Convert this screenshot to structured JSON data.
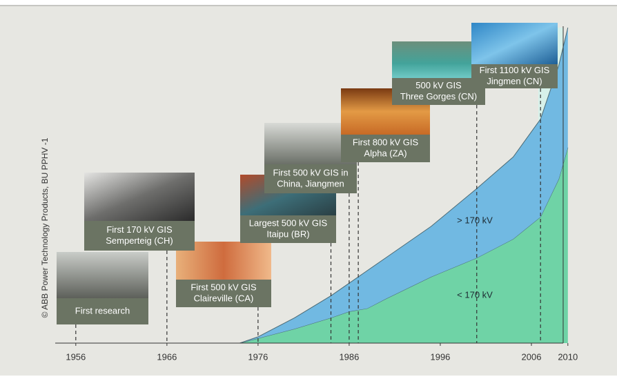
{
  "chart_data": {
    "type": "stacked-area",
    "credit": "© ABB Power Technology Products, BU PPHV -1",
    "x": [
      1969,
      1974,
      1976,
      1980,
      1984,
      1986,
      1988,
      1990,
      1995,
      2000,
      2004,
      2007,
      2009,
      2010
    ],
    "series": [
      {
        "name": "< 170 kV",
        "color": "#6fd3a6",
        "values": [
          0,
          0,
          1.5,
          4.5,
          8,
          10,
          11,
          14,
          21,
          27,
          33,
          40,
          52,
          62
        ]
      },
      {
        "name": "> 170 kV",
        "color": "#71b9e2",
        "values": [
          0,
          0,
          0.5,
          3.5,
          7,
          9,
          12,
          13,
          16,
          22,
          26,
          31,
          36,
          38
        ]
      }
    ],
    "xlim": [
      1952,
      2011
    ],
    "xticks": [
      1956,
      1966,
      1976,
      1986,
      1996,
      2006,
      2010
    ],
    "ylim": [
      0,
      100
    ],
    "milestones": [
      {
        "lines": [
          "First research"
        ],
        "year": 1956
      },
      {
        "lines": [
          "First 170 kV GIS",
          "Semperteig (CH)"
        ],
        "year": 1966
      },
      {
        "lines": [
          "First 500 kV GIS",
          "Claireville (CA)"
        ],
        "year": 1976
      },
      {
        "lines": [
          "Largest 500 kV GIS",
          "Itaipu (BR)"
        ],
        "year": 1984
      },
      {
        "lines": [
          "First 500 kV GIS in",
          "China, Jiangmen"
        ],
        "year": 1986
      },
      {
        "lines": [
          "First 800 kV GIS",
          "Alpha (ZA)"
        ],
        "year": 1987
      },
      {
        "lines": [
          "500 kV GIS",
          "Three Gorges (CN)"
        ],
        "year": 2000
      },
      {
        "lines": [
          "First 1100 kV GIS",
          "Jingmen (CN)"
        ],
        "year": 2007
      }
    ]
  }
}
